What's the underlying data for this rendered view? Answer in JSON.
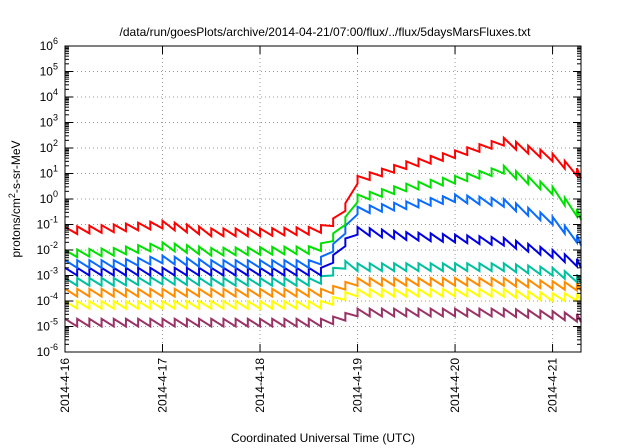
{
  "chart_data": {
    "type": "line",
    "title": "/data/run/goesPlots/archive/2014-04-21/07:00/flux/../flux/5daysMarsFluxes.txt",
    "xlabel": "Coordinated Universal Time (UTC)",
    "ylabel_prefix": "protons/cm",
    "ylabel_exp": "2",
    "ylabel_suffix": "-s-sr-MeV",
    "yscale": "log",
    "ylim": [
      1e-06,
      1000000.0
    ],
    "y_ticks": [
      {
        "base": "10",
        "exp": "-6",
        "value": 1e-06
      },
      {
        "base": "10",
        "exp": "-5",
        "value": 1e-05
      },
      {
        "base": "10",
        "exp": "-4",
        "value": 0.0001
      },
      {
        "base": "10",
        "exp": "-3",
        "value": 0.001
      },
      {
        "base": "10",
        "exp": "-2",
        "value": 0.01
      },
      {
        "base": "10",
        "exp": "-1",
        "value": 0.1
      },
      {
        "base": "10",
        "exp": "0",
        "value": 1
      },
      {
        "base": "10",
        "exp": "1",
        "value": 10
      },
      {
        "base": "10",
        "exp": "2",
        "value": 100
      },
      {
        "base": "10",
        "exp": "3",
        "value": 1000
      },
      {
        "base": "10",
        "exp": "4",
        "value": 10000
      },
      {
        "base": "10",
        "exp": "5",
        "value": 100000
      },
      {
        "base": "10",
        "exp": "6",
        "value": 1000000
      }
    ],
    "xlim": [
      "2014-04-16 00:00",
      "2014-04-21 07:00"
    ],
    "x_ticks": [
      {
        "label": "2014-4-16",
        "value": "2014-04-16 00:00"
      },
      {
        "label": "2014-4-17",
        "value": "2014-04-17 00:00"
      },
      {
        "label": "2014-4-18",
        "value": "2014-04-18 00:00"
      },
      {
        "label": "2014-4-19",
        "value": "2014-04-19 00:00"
      },
      {
        "label": "2014-4-20",
        "value": "2014-04-20 00:00"
      },
      {
        "label": "2014-4-21",
        "value": "2014-04-21 00:00"
      }
    ],
    "grid": true,
    "x": [
      "2014-04-16 00:00",
      "2014-04-16 12:00",
      "2014-04-17 00:00",
      "2014-04-17 12:00",
      "2014-04-18 00:00",
      "2014-04-18 12:00",
      "2014-04-18 16:00",
      "2014-04-18 20:00",
      "2014-04-19 00:00",
      "2014-04-19 12:00",
      "2014-04-20 00:00",
      "2014-04-20 12:00",
      "2014-04-21 00:00",
      "2014-04-21 07:00"
    ],
    "series": [
      {
        "color": "#ff0000",
        "values": [
          0.08,
          0.1,
          0.14,
          0.07,
          0.07,
          0.08,
          0.1,
          0.3,
          8,
          30,
          80,
          250,
          60,
          13
        ]
      },
      {
        "color": "#00e000",
        "values": [
          0.01,
          0.012,
          0.02,
          0.012,
          0.013,
          0.014,
          0.02,
          0.1,
          1.5,
          4,
          8,
          20,
          3,
          0.3
        ]
      },
      {
        "color": "#0a6cff",
        "values": [
          0.004,
          0.004,
          0.006,
          0.004,
          0.004,
          0.004,
          0.006,
          0.05,
          0.5,
          0.8,
          1.5,
          1,
          0.2,
          0.03
        ]
      },
      {
        "color": "#0000e0",
        "values": [
          0.002,
          0.002,
          0.002,
          0.002,
          0.002,
          0.002,
          0.002,
          0.02,
          0.08,
          0.05,
          0.04,
          0.03,
          0.01,
          0.004
        ]
      },
      {
        "color": "#00c0a0",
        "values": [
          0.0008,
          0.0008,
          0.0009,
          0.0008,
          0.0008,
          0.0008,
          0.001,
          0.004,
          0.003,
          0.003,
          0.003,
          0.003,
          0.002,
          0.001
        ]
      },
      {
        "color": "#ff8c00",
        "values": [
          0.0003,
          0.0003,
          0.0003,
          0.0003,
          0.0003,
          0.0003,
          0.0003,
          0.0005,
          0.0008,
          0.0008,
          0.0008,
          0.0008,
          0.0006,
          0.0005
        ]
      },
      {
        "color": "#ffff00",
        "values": [
          0.0001,
          0.0001,
          0.0001,
          0.0001,
          0.0001,
          0.0001,
          0.0001,
          0.0002,
          0.0003,
          0.0003,
          0.0003,
          0.0003,
          0.0002,
          0.0002
        ]
      },
      {
        "color": "#993366",
        "values": [
          2e-05,
          2e-05,
          2e-05,
          2e-05,
          2e-05,
          2e-05,
          2e-05,
          3e-05,
          5e-05,
          5e-05,
          5e-05,
          5e-05,
          4e-05,
          3e-05
        ]
      }
    ],
    "sawtooth_period_hours": 3,
    "sawtooth_drop_factor": 0.5
  }
}
